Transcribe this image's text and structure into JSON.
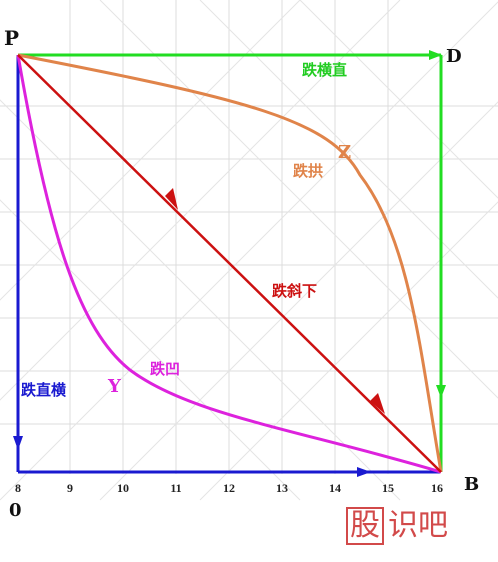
{
  "points": {
    "p": "P",
    "d": "D",
    "b": "B",
    "zero": "0"
  },
  "curves": {
    "horizontal_then_straight": {
      "label": "跌横直",
      "color": "#22dd22"
    },
    "arch": {
      "label": "跌拱",
      "marker": "Z",
      "color": "#e0844a"
    },
    "diagonal": {
      "label": "跌斜下",
      "color": "#cc1111"
    },
    "concave": {
      "label": "跌凹",
      "marker": "Y",
      "color": "#dd22dd"
    },
    "straight_then_horizontal": {
      "label": "跌直横",
      "color": "#1a1ad0"
    }
  },
  "x_ticks": [
    "8",
    "9",
    "10",
    "11",
    "12",
    "13",
    "14",
    "15",
    "16"
  ],
  "watermark": {
    "boxed": "股",
    "rest": "识吧"
  }
}
